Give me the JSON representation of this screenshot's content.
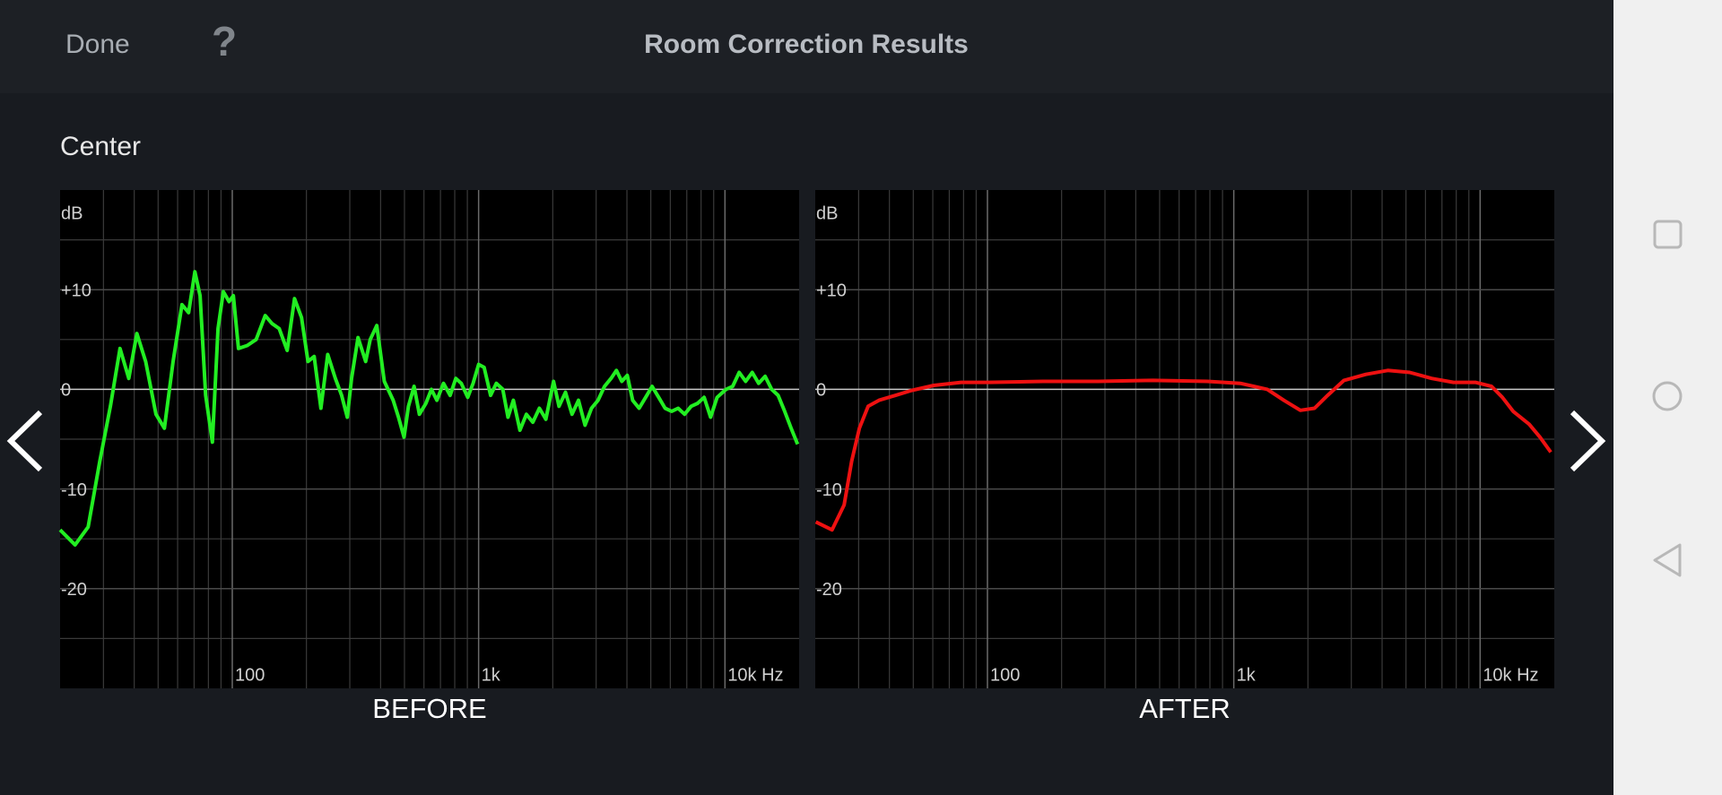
{
  "header": {
    "done": "Done",
    "help": "?",
    "title": "Room Correction Results"
  },
  "channel": "Center",
  "chart_data": [
    {
      "type": "line",
      "title": "BEFORE",
      "y_label": "dB",
      "color": "#22ee22",
      "log_x": true,
      "grid": true,
      "xlim": [
        20,
        20000
      ],
      "ylim": [
        -30,
        20
      ],
      "xticks": [
        100,
        {
          "value": 1000,
          "label": "1k"
        },
        {
          "value": 10000,
          "label": "10k Hz"
        }
      ],
      "yticks": [
        {
          "value": 10,
          "label": "+10"
        },
        0,
        -10,
        -20
      ],
      "xgrid": [
        30,
        40,
        50,
        60,
        70,
        80,
        90,
        200,
        300,
        400,
        500,
        600,
        700,
        800,
        900,
        2000,
        3000,
        4000,
        5000,
        6000,
        7000,
        8000,
        9000
      ],
      "ygrid": [
        15,
        5,
        -5,
        -15,
        -25
      ],
      "x": [
        20,
        23,
        26,
        29,
        32,
        35,
        38,
        41,
        44.5,
        49,
        53,
        57.5,
        62.5,
        66.5,
        70.5,
        74,
        78,
        83,
        87.5,
        92,
        97,
        101,
        106,
        115,
        125,
        136,
        145,
        155,
        167,
        179,
        191,
        203,
        215,
        229,
        244,
        262,
        278,
        293,
        305,
        324,
        348,
        363,
        386,
        414,
        450,
        473,
        498,
        519,
        547,
        575,
        611,
        643,
        677,
        720,
        766,
        808,
        850,
        903,
        950,
        1000,
        1053,
        1118,
        1180,
        1253,
        1316,
        1384,
        1471,
        1563,
        1660,
        1764,
        1875,
        2015,
        2120,
        2253,
        2394,
        2544,
        2703,
        2873,
        3053,
        3244,
        3448,
        3627,
        3814,
        4012,
        4220,
        4484,
        4765,
        5063,
        5380,
        5717,
        6075,
        6455,
        6859,
        7289,
        7745,
        8230,
        8745,
        9293,
        10100,
        10750,
        11420,
        12140,
        12900,
        13700,
        14560,
        15470,
        16440,
        17470,
        18560,
        19720
      ],
      "values": [
        -14.1,
        -15.6,
        -13.8,
        -7.2,
        -1.7,
        4.1,
        1.1,
        5.6,
        2.8,
        -2.5,
        -3.9,
        2.8,
        8.5,
        7.7,
        11.8,
        9.4,
        -0.6,
        -5.3,
        6.1,
        9.8,
        8.8,
        9.4,
        4.1,
        4.4,
        5.0,
        7.4,
        6.6,
        6.1,
        3.9,
        9.1,
        7.2,
        2.8,
        3.3,
        -1.9,
        3.5,
        1.1,
        -0.6,
        -2.8,
        1.1,
        5.2,
        2.8,
        5.0,
        6.4,
        0.8,
        -1.1,
        -2.8,
        -4.8,
        -1.7,
        0.3,
        -2.5,
        -1.4,
        0,
        -1.1,
        0.6,
        -0.6,
        1.1,
        0.6,
        -0.8,
        0.6,
        2.5,
        2.2,
        -0.6,
        0.6,
        0,
        -2.8,
        -1.1,
        -4.1,
        -2.5,
        -3.3,
        -1.9,
        -3.0,
        0.8,
        -1.7,
        -0.3,
        -2.5,
        -1.1,
        -3.6,
        -1.9,
        -1.1,
        0.3,
        1.1,
        1.9,
        0.8,
        1.4,
        -1.1,
        -1.9,
        -0.8,
        0.3,
        -0.8,
        -1.9,
        -2.2,
        -1.9,
        -2.5,
        -1.7,
        -1.4,
        -0.8,
        -2.8,
        -0.8,
        0,
        0.3,
        1.7,
        0.8,
        1.7,
        0.6,
        1.3,
        0,
        -0.6,
        -2.2,
        -3.9,
        -5.5
      ]
    },
    {
      "type": "line",
      "title": "AFTER",
      "y_label": "dB",
      "color": "#ee1111",
      "log_x": true,
      "grid": true,
      "xlim": [
        20,
        20000
      ],
      "ylim": [
        -30,
        20
      ],
      "xticks": [
        100,
        {
          "value": 1000,
          "label": "1k"
        },
        {
          "value": 10000,
          "label": "10k Hz"
        }
      ],
      "yticks": [
        {
          "value": 10,
          "label": "+10"
        },
        0,
        -10,
        -20
      ],
      "xgrid": [
        30,
        40,
        50,
        60,
        70,
        80,
        90,
        200,
        300,
        400,
        500,
        600,
        700,
        800,
        900,
        2000,
        3000,
        4000,
        5000,
        6000,
        7000,
        8000,
        9000
      ],
      "ygrid": [
        15,
        5,
        -5,
        -15,
        -25
      ],
      "x": [
        20.1,
        23.4,
        26.2,
        28.1,
        30.2,
        32.8,
        36.3,
        42.4,
        49.4,
        60.6,
        78.2,
        101,
        168,
        281,
        469,
        782,
        1063,
        1368,
        1596,
        1863,
        2128,
        2405,
        2800,
        3436,
        4218,
        5176,
        6352,
        7796,
        9568,
        11130,
        12310,
        13610,
        15820,
        17500,
        19360
      ],
      "values": [
        -13.3,
        -14.1,
        -11.6,
        -7.2,
        -3.9,
        -1.7,
        -1.1,
        -0.6,
        -0.1,
        0.4,
        0.7,
        0.7,
        0.8,
        0.8,
        0.9,
        0.8,
        0.6,
        0,
        -1.1,
        -2.1,
        -1.9,
        -0.6,
        0.9,
        1.5,
        1.9,
        1.7,
        1.1,
        0.7,
        0.7,
        0.3,
        -0.8,
        -2.2,
        -3.5,
        -4.8,
        -6.3
      ]
    }
  ]
}
